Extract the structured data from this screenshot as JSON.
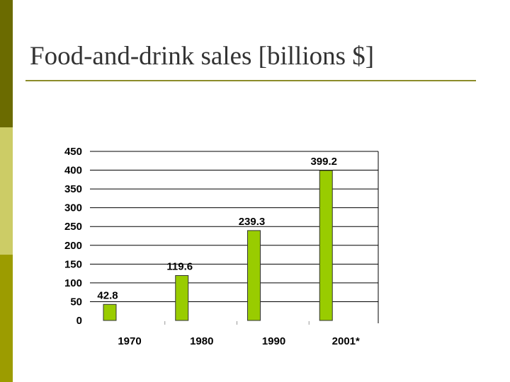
{
  "slide": {
    "title": "Food-and-drink sales [billions $]"
  },
  "colors": {
    "sidebar_top": "#6b6b00",
    "sidebar_mid": "#cccc66",
    "sidebar_bottom": "#9c9c00",
    "title_rule": "#8c8c2a",
    "bar_fill": "#99cc00",
    "bar_stroke": "#333333",
    "grid": "#000000"
  },
  "chart_data": {
    "type": "bar",
    "categories": [
      "1970",
      "1980",
      "1990",
      "2001*"
    ],
    "values": [
      42.8,
      119.6,
      239.3,
      399.2
    ],
    "data_labels": [
      "42.8",
      "119.6",
      "239.3",
      "399.2"
    ],
    "ylim": [
      0,
      450
    ],
    "yticks": [
      0,
      50,
      100,
      150,
      200,
      250,
      300,
      350,
      400,
      450
    ],
    "grid": true,
    "legend": "none",
    "title": "",
    "xlabel": "",
    "ylabel": ""
  }
}
